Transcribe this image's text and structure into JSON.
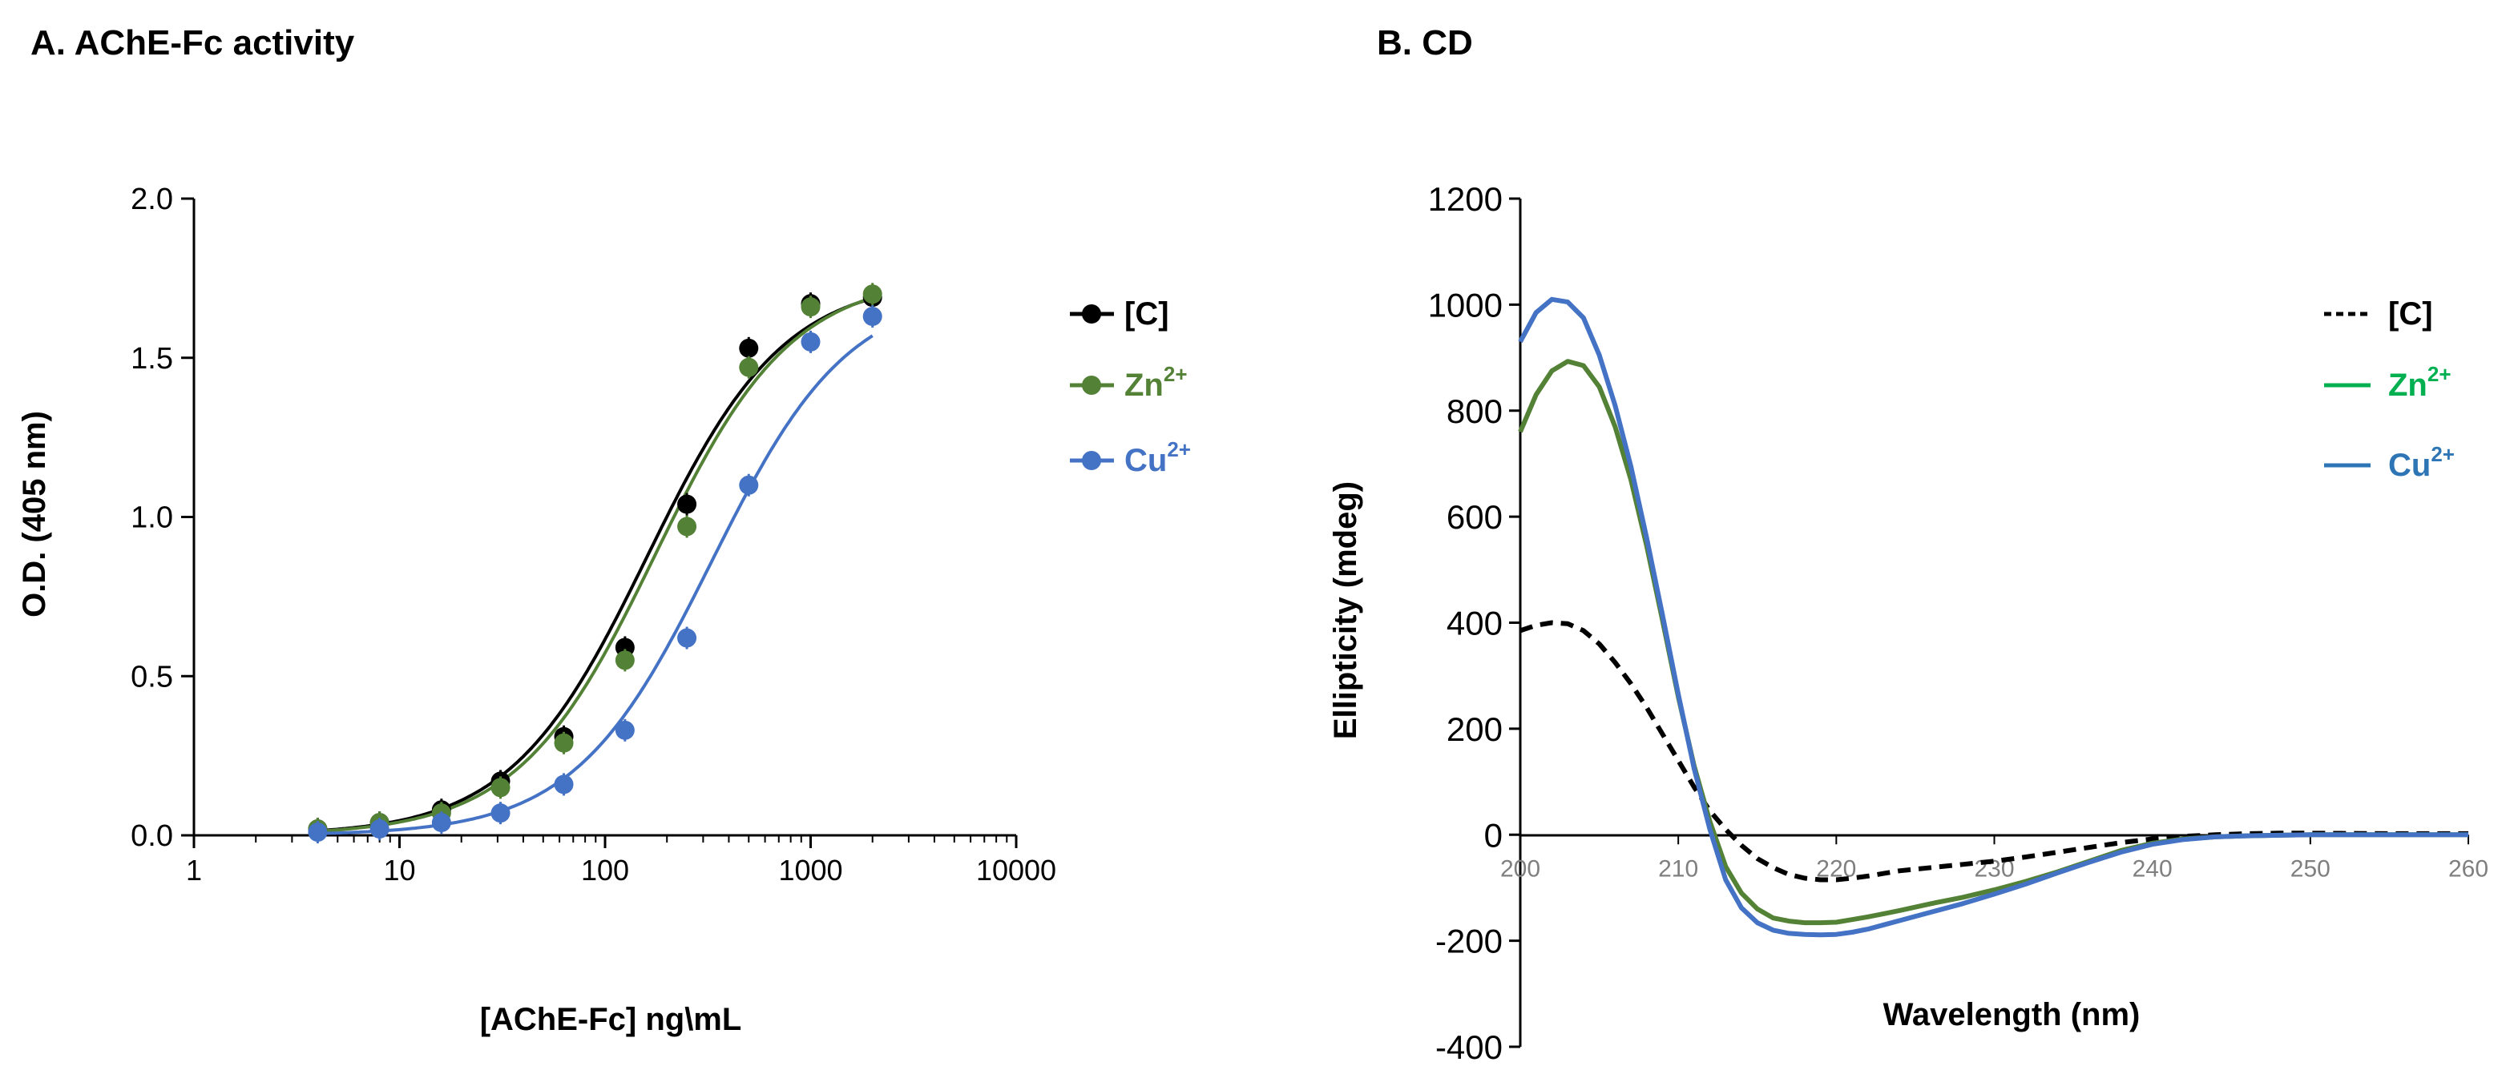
{
  "colors": {
    "black": "#000000",
    "green": "#538135",
    "green_line": "#00b050",
    "blue": "#4472c4"
  },
  "chart_data": [
    {
      "type": "scatter",
      "panel": "A",
      "title": "A. AChE-Fc activity",
      "xlabel": "[AChE-Fc] ng\\mL",
      "ylabel": "O.D. (405 nm)",
      "xscale": "log",
      "xlim": [
        1,
        10000
      ],
      "ylim": [
        0,
        2.0
      ],
      "x_ticks": [
        1,
        10,
        100,
        1000,
        10000
      ],
      "x_tick_labels": [
        "1",
        "10",
        "100",
        "1000",
        "10000"
      ],
      "y_ticks": [
        0,
        0.5,
        1.0,
        1.5,
        2.0
      ],
      "y_tick_labels": [
        "0.0",
        "0.5",
        "1.0",
        "1.5",
        "2.0"
      ],
      "legend_position": "right",
      "series": [
        {
          "key": "C",
          "name": "[C]",
          "sup": "",
          "color": "#000000",
          "x": [
            4,
            8,
            16,
            31,
            63,
            125,
            250,
            500,
            1000,
            2000
          ],
          "y": [
            0.02,
            0.04,
            0.08,
            0.17,
            0.31,
            0.59,
            1.04,
            1.53,
            1.67,
            1.69
          ],
          "fit": {
            "bottom": 0.0,
            "top": 1.75,
            "ec50": 160,
            "hill": 1.3
          }
        },
        {
          "key": "Zn",
          "name": "Zn",
          "sup": "2+",
          "color": "#538135",
          "x": [
            4,
            8,
            16,
            31,
            63,
            125,
            250,
            500,
            1000,
            2000
          ],
          "y": [
            0.02,
            0.04,
            0.07,
            0.15,
            0.29,
            0.55,
            0.97,
            1.47,
            1.66,
            1.7
          ],
          "fit": {
            "bottom": 0.0,
            "top": 1.76,
            "ec50": 175,
            "hill": 1.3
          }
        },
        {
          "key": "Cu",
          "name": "Cu",
          "sup": "2+",
          "color": "#4472c4",
          "x": [
            4,
            8,
            16,
            31,
            63,
            125,
            250,
            500,
            1000,
            2000
          ],
          "y": [
            0.01,
            0.02,
            0.04,
            0.07,
            0.16,
            0.33,
            0.62,
            1.1,
            1.55,
            1.63
          ],
          "fit": {
            "bottom": 0.0,
            "top": 1.72,
            "ec50": 330,
            "hill": 1.3
          }
        }
      ]
    },
    {
      "type": "line",
      "panel": "B",
      "title": "B. CD",
      "xlabel": "Wavelength (nm)",
      "ylabel": "Ellipticity (mdeg)",
      "xlim": [
        200,
        260
      ],
      "ylim": [
        -400,
        1200
      ],
      "x_ticks": [
        200,
        210,
        220,
        230,
        240,
        250,
        260
      ],
      "x_tick_labels": [
        "200",
        "210",
        "220",
        "230",
        "240",
        "250",
        "260"
      ],
      "y_ticks": [
        -400,
        -200,
        0,
        200,
        400,
        600,
        800,
        1000,
        1200
      ],
      "y_tick_labels": [
        "-400",
        "-200",
        "0",
        "200",
        "400",
        "600",
        "800",
        "1000",
        "1200"
      ],
      "legend_position": "right",
      "series": [
        {
          "key": "C",
          "name": "[C]",
          "sup": "",
          "color": "#000000",
          "dashed": true,
          "x": [
            200,
            201,
            202,
            203,
            204,
            205,
            206,
            207,
            208,
            209,
            210,
            211,
            212,
            213,
            214,
            215,
            216,
            217,
            218,
            219,
            220,
            221,
            222,
            223,
            224,
            226,
            228,
            230,
            232,
            234,
            236,
            238,
            240,
            242,
            244,
            246,
            248,
            250,
            255,
            260
          ],
          "y": [
            385,
            395,
            400,
            398,
            385,
            360,
            325,
            285,
            240,
            190,
            140,
            90,
            45,
            10,
            -20,
            -45,
            -62,
            -75,
            -82,
            -85,
            -85,
            -82,
            -78,
            -73,
            -68,
            -62,
            -56,
            -50,
            -42,
            -33,
            -24,
            -15,
            -8,
            -3,
            0,
            2,
            3,
            3,
            2,
            2
          ]
        },
        {
          "key": "Zn",
          "name": "Zn",
          "sup": "2+",
          "color": "#538135",
          "x": [
            200,
            201,
            202,
            203,
            204,
            205,
            206,
            207,
            208,
            209,
            210,
            211,
            212,
            213,
            214,
            215,
            216,
            217,
            218,
            219,
            220,
            221,
            222,
            223,
            224,
            226,
            228,
            230,
            232,
            234,
            236,
            238,
            240,
            242,
            244,
            246,
            248,
            250,
            255,
            260
          ],
          "y": [
            760,
            830,
            875,
            893,
            885,
            845,
            770,
            670,
            545,
            405,
            260,
            130,
            25,
            -60,
            -110,
            -140,
            -157,
            -163,
            -166,
            -166,
            -165,
            -160,
            -155,
            -149,
            -143,
            -130,
            -118,
            -104,
            -88,
            -70,
            -50,
            -30,
            -16,
            -8,
            -4,
            -2,
            -1,
            0,
            0,
            0
          ]
        },
        {
          "key": "Cu",
          "name": "Cu",
          "sup": "2+",
          "color": "#4472c4",
          "x": [
            200,
            201,
            202,
            203,
            204,
            205,
            206,
            207,
            208,
            209,
            210,
            211,
            212,
            213,
            214,
            215,
            216,
            217,
            218,
            219,
            220,
            221,
            222,
            223,
            224,
            226,
            228,
            230,
            232,
            234,
            236,
            238,
            240,
            242,
            244,
            246,
            248,
            250,
            255,
            260
          ],
          "y": [
            930,
            985,
            1010,
            1005,
            975,
            905,
            810,
            695,
            560,
            415,
            265,
            125,
            10,
            -85,
            -138,
            -166,
            -180,
            -186,
            -188,
            -189,
            -188,
            -184,
            -178,
            -170,
            -162,
            -146,
            -130,
            -112,
            -93,
            -72,
            -52,
            -33,
            -18,
            -9,
            -4,
            -2,
            -1,
            0,
            0,
            0
          ]
        }
      ]
    }
  ]
}
